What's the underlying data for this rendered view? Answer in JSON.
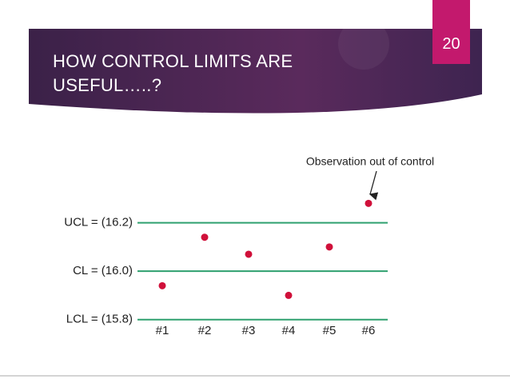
{
  "slide": {
    "title": "HOW CONTROL LIMITS ARE USEFUL…..?",
    "number": "20"
  },
  "chart_data": {
    "type": "scatter",
    "annotation": "Observation out of control",
    "categories": [
      "#1",
      "#2",
      "#3",
      "#4",
      "#5",
      "#6"
    ],
    "series": [
      {
        "color": "#d0103a",
        "values": [
          15.94,
          16.14,
          16.07,
          15.9,
          16.1,
          16.28
        ]
      }
    ],
    "line_color": "#2ea06f",
    "ylim": [
      15.7,
      16.4
    ],
    "yticks": [
      {
        "value": 15.8,
        "label": "LCL = (15.8)"
      },
      {
        "value": 16.0,
        "label": "CL = (16.0)"
      },
      {
        "value": 16.2,
        "label": "UCL = (16.2)"
      }
    ],
    "grid": true
  }
}
